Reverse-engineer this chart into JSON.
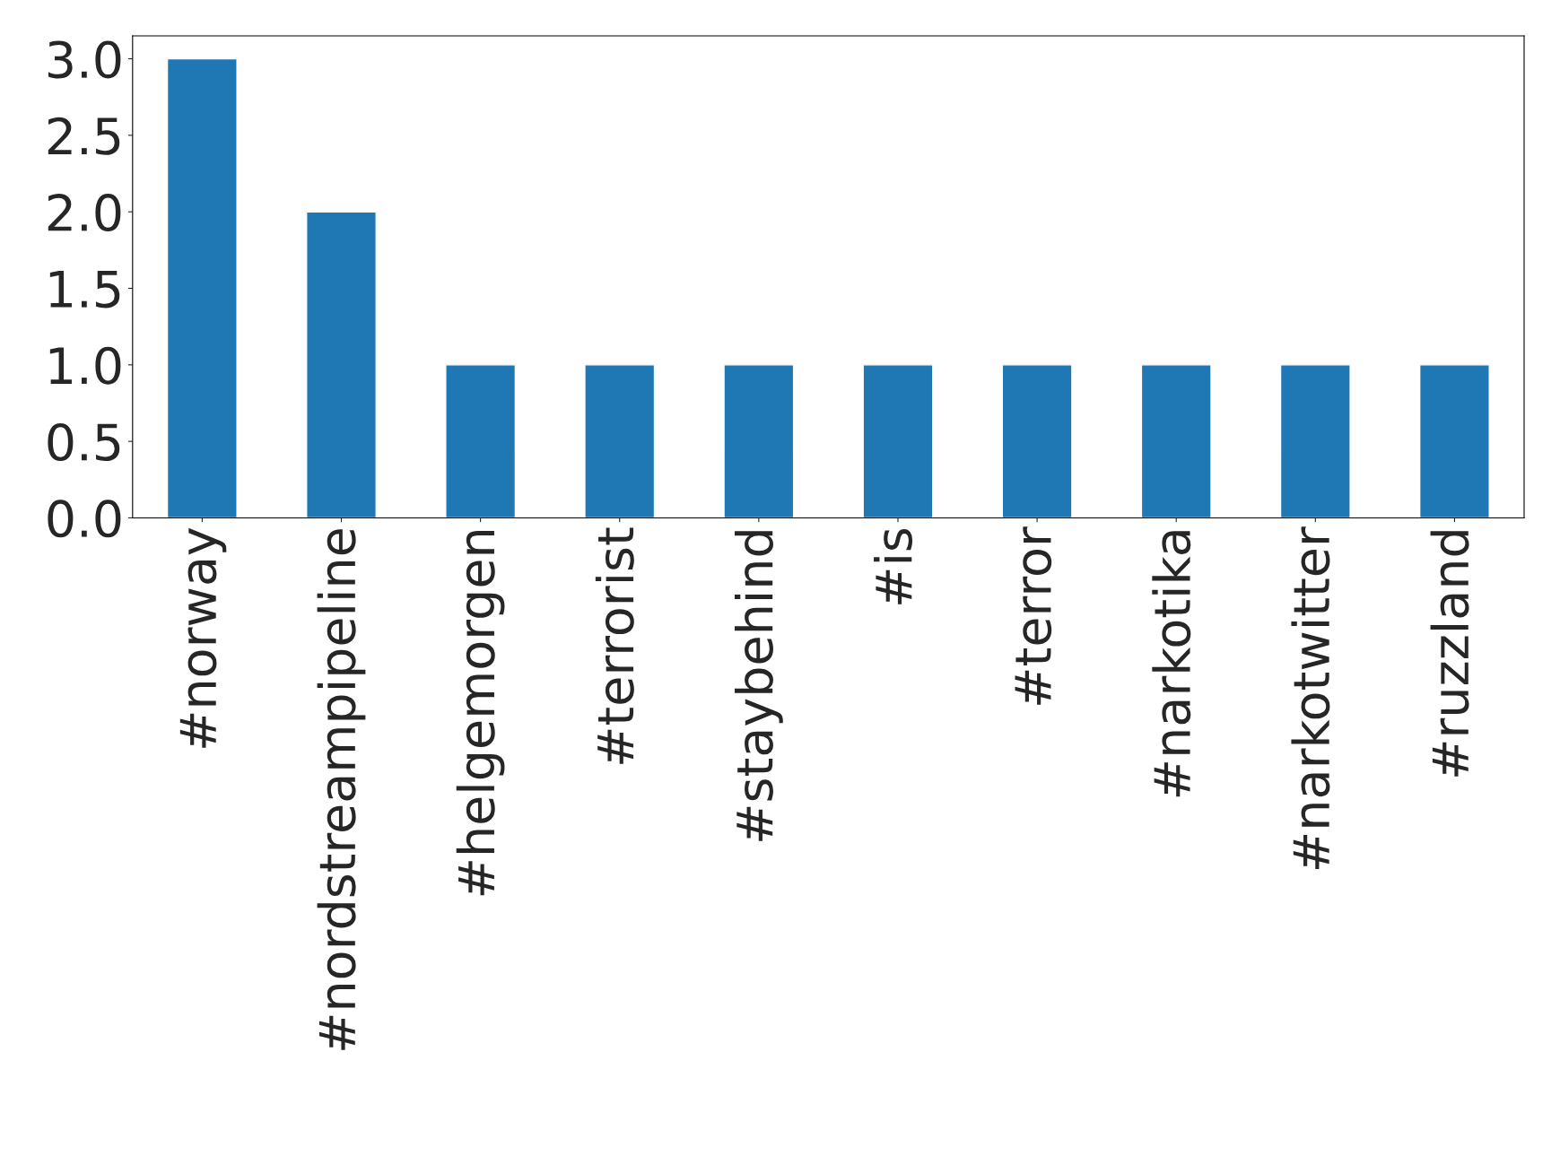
{
  "chart_data": {
    "type": "bar",
    "categories": [
      "#norway",
      "#nordstreampipeline",
      "#helgemorgen",
      "#terrorist",
      "#staybehind",
      "#is",
      "#terror",
      "#narkotika",
      "#narkotwitter",
      "#ruzzland"
    ],
    "values": [
      3,
      2,
      1,
      1,
      1,
      1,
      1,
      1,
      1,
      1
    ],
    "color": "#1f77b4",
    "ylim": [
      0,
      3.15
    ],
    "yticks": [
      {
        "value": 0,
        "label": "0.0"
      },
      {
        "value": 0.5,
        "label": "0.5"
      },
      {
        "value": 1,
        "label": "1.0"
      },
      {
        "value": 1.5,
        "label": "1.5"
      },
      {
        "value": 2,
        "label": "2.0"
      },
      {
        "value": 2.5,
        "label": "2.5"
      },
      {
        "value": 3,
        "label": "3.0"
      }
    ]
  }
}
